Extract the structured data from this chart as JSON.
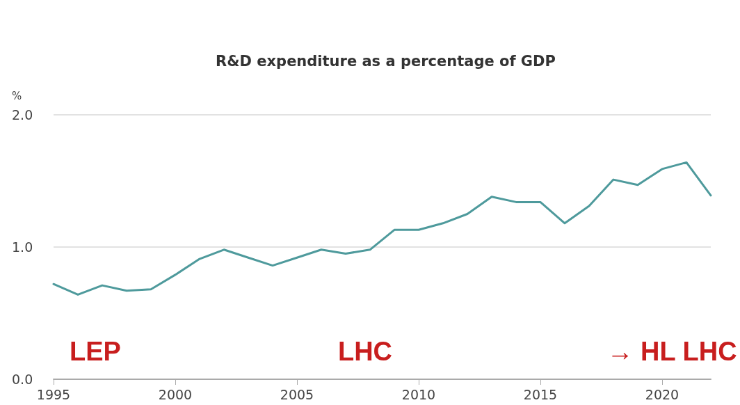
{
  "chart_data": {
    "type": "line",
    "title": "R&D expenditure as a percentage of GDP",
    "ylabel": "%",
    "x": [
      1995,
      1996,
      1997,
      1998,
      1999,
      2000,
      2001,
      2002,
      2003,
      2004,
      2005,
      2006,
      2007,
      2008,
      2009,
      2010,
      2011,
      2012,
      2013,
      2014,
      2015,
      2016,
      2017,
      2018,
      2019,
      2020,
      2021,
      2022
    ],
    "series": [
      {
        "color": "#4e9a9c",
        "values": [
          0.72,
          0.64,
          0.71,
          0.67,
          0.68,
          0.79,
          0.91,
          0.98,
          0.92,
          0.86,
          0.92,
          0.98,
          0.95,
          0.98,
          1.13,
          1.13,
          1.18,
          1.25,
          1.38,
          1.34,
          1.34,
          1.18,
          1.31,
          1.51,
          1.47,
          1.59,
          1.64,
          1.39
        ]
      }
    ],
    "xlim": [
      1995,
      2022
    ],
    "xticks": [
      1995,
      2000,
      2005,
      2010,
      2015,
      2020
    ],
    "ylim": [
      0,
      2
    ],
    "yticks": [
      {
        "value": 0,
        "label": "0.0"
      },
      {
        "value": 1,
        "label": "1.0"
      },
      {
        "value": 2,
        "label": "2.0"
      }
    ],
    "grid": "y",
    "marker": "none",
    "line_style": "solid",
    "annotations": [
      "LEP",
      "LHC",
      "→ HL LHC"
    ]
  }
}
